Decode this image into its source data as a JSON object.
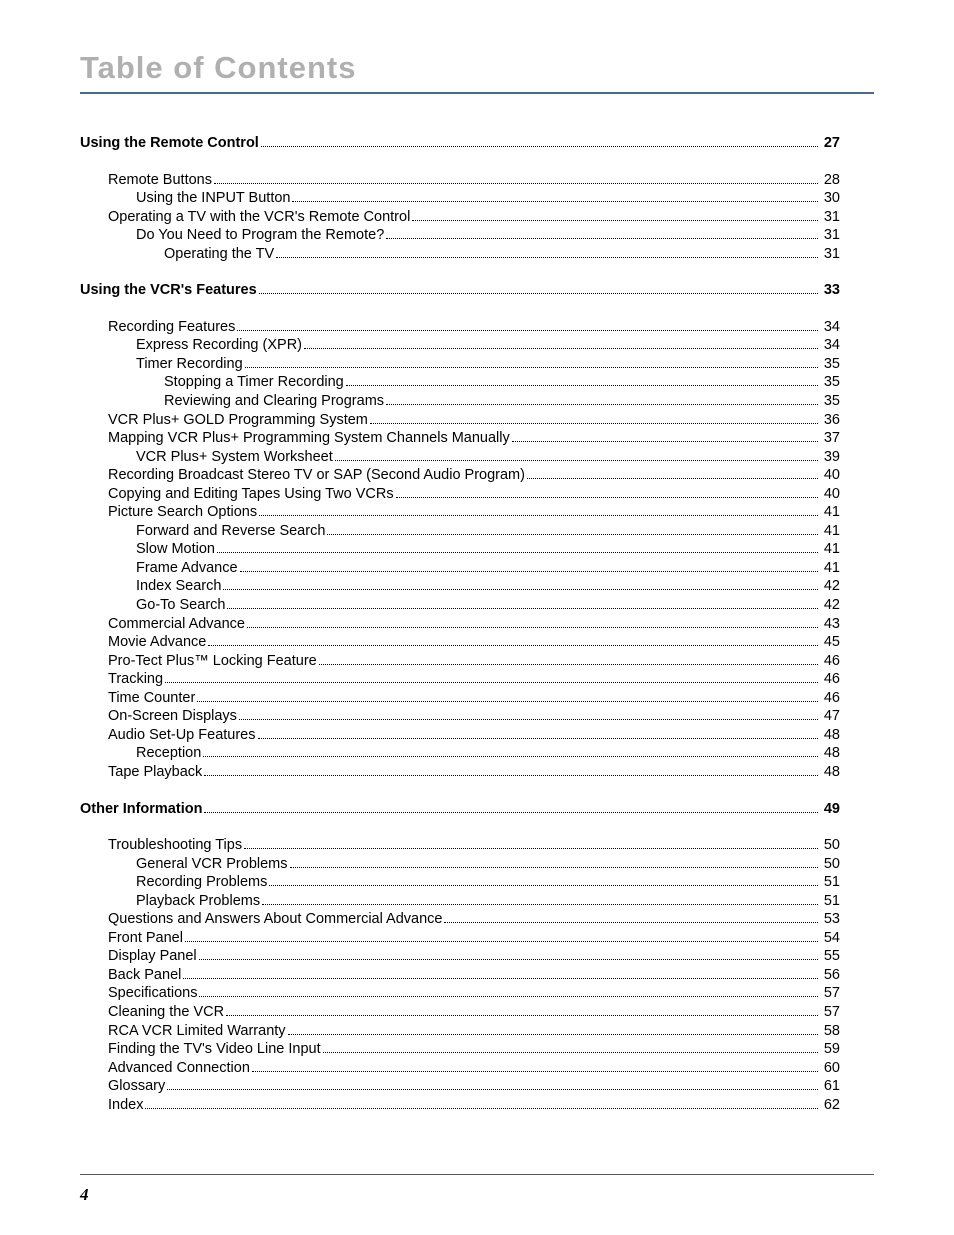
{
  "title": "Table of Contents",
  "page_number": "4",
  "colors": {
    "title_gray": "#b0b0b0",
    "rule_blue": "#4a6a8a",
    "text": "#000000",
    "bg": "#ffffff"
  },
  "toc": [
    {
      "level": 0,
      "bold": true,
      "label": "Using the Remote Control",
      "page": "27",
      "gap": null
    },
    {
      "level": 1,
      "bold": false,
      "label": "Remote Buttons",
      "page": "28",
      "gap": "block1"
    },
    {
      "level": 2,
      "bold": false,
      "label": "Using the INPUT Button",
      "page": "30",
      "gap": null
    },
    {
      "level": 1,
      "bold": false,
      "label": "Operating a TV with the VCR's Remote Control",
      "page": "31",
      "gap": null
    },
    {
      "level": 2,
      "bold": false,
      "label": "Do You Need to Program the Remote?",
      "page": "31",
      "gap": null
    },
    {
      "level": 3,
      "bold": false,
      "label": "Operating the TV",
      "page": "31",
      "gap": null
    },
    {
      "level": 0,
      "bold": true,
      "label": "Using the VCR's Features",
      "page": "33",
      "gap": "section-gap"
    },
    {
      "level": 1,
      "bold": false,
      "label": "Recording Features",
      "page": "34",
      "gap": "block1"
    },
    {
      "level": 2,
      "bold": false,
      "label": "Express Recording (XPR)",
      "page": "34",
      "gap": null
    },
    {
      "level": 2,
      "bold": false,
      "label": "Timer Recording",
      "page": "35",
      "gap": null
    },
    {
      "level": 3,
      "bold": false,
      "label": "Stopping a Timer Recording",
      "page": "35",
      "gap": null
    },
    {
      "level": 3,
      "bold": false,
      "label": "Reviewing and Clearing Programs",
      "page": "35",
      "gap": null
    },
    {
      "level": 1,
      "bold": false,
      "label": "VCR Plus+ GOLD Programming System",
      "page": "36",
      "gap": null
    },
    {
      "level": 1,
      "bold": false,
      "label": "Mapping VCR Plus+ Programming System Channels Manually",
      "page": "37",
      "gap": null
    },
    {
      "level": 2,
      "bold": false,
      "label": "VCR Plus+ System Worksheet",
      "page": "39",
      "gap": null
    },
    {
      "level": 1,
      "bold": false,
      "label": "Recording Broadcast Stereo TV or SAP (Second Audio Program)",
      "page": "40",
      "gap": null
    },
    {
      "level": 1,
      "bold": false,
      "label": "Copying and Editing Tapes Using Two VCRs",
      "page": "40",
      "gap": null
    },
    {
      "level": 1,
      "bold": false,
      "label": "Picture Search Options",
      "page": "41",
      "gap": null
    },
    {
      "level": 2,
      "bold": false,
      "label": "Forward and Reverse Search",
      "page": "41",
      "gap": null
    },
    {
      "level": 2,
      "bold": false,
      "label": "Slow Motion",
      "page": "41",
      "gap": null
    },
    {
      "level": 2,
      "bold": false,
      "label": "Frame Advance",
      "page": "41",
      "gap": null
    },
    {
      "level": 2,
      "bold": false,
      "label": "Index Search",
      "page": "42",
      "gap": null
    },
    {
      "level": 2,
      "bold": false,
      "label": "Go-To Search",
      "page": "42",
      "gap": null
    },
    {
      "level": 1,
      "bold": false,
      "label": "Commercial Advance",
      "page": "43",
      "gap": null
    },
    {
      "level": 1,
      "bold": false,
      "label": "Movie Advance",
      "page": "45",
      "gap": null
    },
    {
      "level": 1,
      "bold": false,
      "label": "Pro-Tect Plus™ Locking Feature",
      "page": "46",
      "gap": null
    },
    {
      "level": 1,
      "bold": false,
      "label": "Tracking",
      "page": "46",
      "gap": null
    },
    {
      "level": 1,
      "bold": false,
      "label": "Time Counter",
      "page": "46",
      "gap": null
    },
    {
      "level": 1,
      "bold": false,
      "label": "On-Screen Displays",
      "page": "47",
      "gap": null
    },
    {
      "level": 1,
      "bold": false,
      "label": "Audio Set-Up Features",
      "page": "48",
      "gap": null
    },
    {
      "level": 2,
      "bold": false,
      "label": "Reception",
      "page": "48",
      "gap": null
    },
    {
      "level": 1,
      "bold": false,
      "label": "Tape Playback",
      "page": "48",
      "gap": null
    },
    {
      "level": 0,
      "bold": true,
      "label": "Other Information",
      "page": "49",
      "gap": "section-gap"
    },
    {
      "level": 1,
      "bold": false,
      "label": "Troubleshooting Tips",
      "page": "50",
      "gap": "block1"
    },
    {
      "level": 2,
      "bold": false,
      "label": "General VCR Problems",
      "page": "50",
      "gap": null
    },
    {
      "level": 2,
      "bold": false,
      "label": "Recording Problems",
      "page": "51",
      "gap": null
    },
    {
      "level": 2,
      "bold": false,
      "label": "Playback Problems",
      "page": "51",
      "gap": null
    },
    {
      "level": 1,
      "bold": false,
      "label": "Questions and Answers About Commercial Advance",
      "page": "53",
      "gap": null
    },
    {
      "level": 1,
      "bold": false,
      "label": "Front Panel",
      "page": "54",
      "gap": null
    },
    {
      "level": 1,
      "bold": false,
      "label": "Display Panel",
      "page": "55",
      "gap": null
    },
    {
      "level": 1,
      "bold": false,
      "label": "Back Panel",
      "page": "56",
      "gap": null
    },
    {
      "level": 1,
      "bold": false,
      "label": "Specifications",
      "page": "57",
      "gap": null
    },
    {
      "level": 1,
      "bold": false,
      "label": "Cleaning the VCR",
      "page": "57",
      "gap": null
    },
    {
      "level": 1,
      "bold": false,
      "label": "RCA VCR Limited Warranty",
      "page": "58",
      "gap": null
    },
    {
      "level": 1,
      "bold": false,
      "label": "Finding the TV's Video Line Input",
      "page": "59",
      "gap": null
    },
    {
      "level": 1,
      "bold": false,
      "label": "Advanced Connection",
      "page": "60",
      "gap": null
    },
    {
      "level": 1,
      "bold": false,
      "label": "Glossary",
      "page": "61",
      "gap": null
    },
    {
      "level": 1,
      "bold": false,
      "label": "Index",
      "page": "62",
      "gap": null
    }
  ]
}
